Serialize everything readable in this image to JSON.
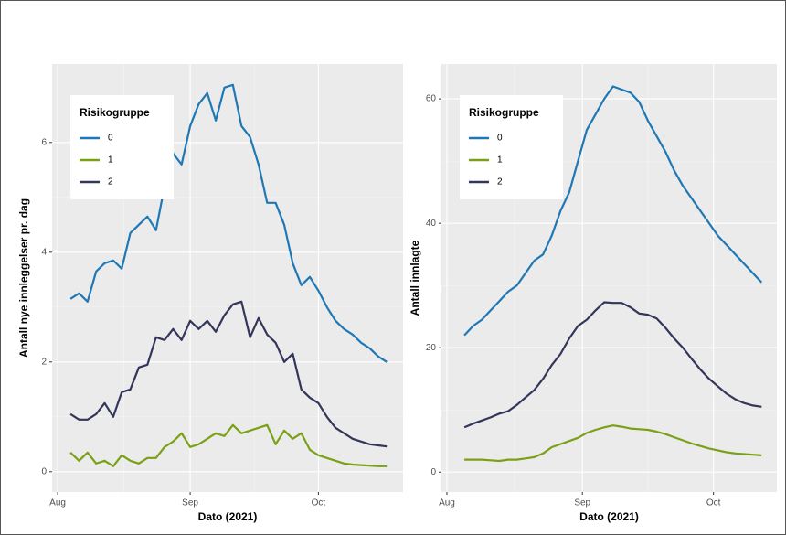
{
  "chart_data": [
    {
      "type": "line",
      "xlabel": "Dato (2021)",
      "ylabel": "Antall nye innleggelser pr. dag",
      "legend_title": "Risikogruppe",
      "legend": "top-left",
      "grid": true,
      "xlim": [
        -1.3,
        80.8
      ],
      "ylim": [
        -0.37,
        7.43
      ],
      "xticks": [
        {
          "value": 0,
          "label": "Aug"
        },
        {
          "value": 31,
          "label": "Sep"
        },
        {
          "value": 61,
          "label": "Oct"
        }
      ],
      "yticks": [
        0,
        2,
        4,
        6
      ],
      "x": [
        3,
        5,
        7,
        9,
        11,
        13,
        15,
        17,
        19,
        21,
        23,
        25,
        27,
        29,
        31,
        33,
        35,
        37,
        39,
        41,
        43,
        45,
        47,
        49,
        51,
        53,
        55,
        57,
        59,
        61,
        63,
        65,
        67,
        69,
        71,
        73,
        75,
        77
      ],
      "series": [
        {
          "name": "0",
          "color": "#1f78b4",
          "values": [
            3.15,
            3.25,
            3.1,
            3.65,
            3.8,
            3.85,
            3.7,
            4.35,
            4.5,
            4.65,
            4.4,
            5.2,
            5.8,
            5.6,
            6.3,
            6.7,
            6.9,
            6.4,
            7.0,
            7.05,
            6.3,
            6.1,
            5.6,
            4.9,
            4.9,
            4.5,
            3.8,
            3.4,
            3.55,
            3.3,
            3.0,
            2.75,
            2.6,
            2.5,
            2.35,
            2.25,
            2.1,
            2.0
          ]
        },
        {
          "name": "1",
          "color": "#7aa116",
          "values": [
            0.35,
            0.2,
            0.35,
            0.15,
            0.2,
            0.1,
            0.3,
            0.2,
            0.15,
            0.25,
            0.25,
            0.45,
            0.55,
            0.7,
            0.45,
            0.5,
            0.6,
            0.7,
            0.65,
            0.85,
            0.7,
            0.75,
            0.8,
            0.85,
            0.5,
            0.75,
            0.6,
            0.7,
            0.4,
            0.3,
            0.25,
            0.2,
            0.15,
            0.13,
            0.12,
            0.11,
            0.1,
            0.1
          ]
        },
        {
          "name": "2",
          "color": "#33355a",
          "values": [
            1.05,
            0.95,
            0.95,
            1.05,
            1.25,
            1.0,
            1.45,
            1.5,
            1.9,
            1.95,
            2.45,
            2.4,
            2.6,
            2.4,
            2.75,
            2.6,
            2.75,
            2.55,
            2.85,
            3.05,
            3.1,
            2.45,
            2.8,
            2.5,
            2.35,
            2.0,
            2.15,
            1.5,
            1.35,
            1.25,
            1.0,
            0.8,
            0.7,
            0.6,
            0.55,
            0.5,
            0.48,
            0.46
          ]
        }
      ]
    },
    {
      "type": "line",
      "xlabel": "Dato (2021)",
      "ylabel": "Antall innlagte",
      "legend_title": "Risikogruppe",
      "legend": "top-left",
      "grid": true,
      "xlim": [
        -1.25,
        75.5
      ],
      "ylim": [
        -3.2,
        65.6
      ],
      "xticks": [
        {
          "value": 0,
          "label": "Aug"
        },
        {
          "value": 31,
          "label": "Sep"
        },
        {
          "value": 61,
          "label": "Oct"
        }
      ],
      "yticks": [
        0,
        20,
        40,
        60
      ],
      "x": [
        4,
        6,
        8,
        10,
        12,
        14,
        16,
        18,
        20,
        22,
        24,
        26,
        28,
        30,
        32,
        34,
        36,
        38,
        40,
        42,
        44,
        46,
        48,
        50,
        52,
        54,
        56,
        58,
        60,
        62,
        64,
        66,
        68,
        70,
        72
      ],
      "series": [
        {
          "name": "0",
          "color": "#1f78b4",
          "values": [
            22,
            23.5,
            24.5,
            26,
            27.5,
            29,
            30,
            32,
            34,
            35,
            38,
            42,
            45,
            50,
            55,
            57.5,
            60,
            62,
            61.5,
            61,
            59.5,
            56.5,
            54,
            51.5,
            48.5,
            46,
            44,
            42,
            40,
            38,
            36.5,
            35,
            33.5,
            32,
            30.5
          ]
        },
        {
          "name": "1",
          "color": "#7aa116",
          "values": [
            2,
            2,
            2,
            1.9,
            1.8,
            2,
            2,
            2.2,
            2.4,
            3,
            4,
            4.5,
            5,
            5.5,
            6.3,
            6.8,
            7.2,
            7.5,
            7.3,
            7,
            6.9,
            6.8,
            6.5,
            6.1,
            5.6,
            5.1,
            4.6,
            4.2,
            3.8,
            3.5,
            3.2,
            3.0,
            2.9,
            2.8,
            2.7
          ]
        },
        {
          "name": "2",
          "color": "#33355a",
          "values": [
            7.2,
            7.8,
            8.3,
            8.8,
            9.4,
            9.8,
            10.8,
            12,
            13.2,
            15,
            17.2,
            19,
            21.5,
            23.5,
            24.5,
            26,
            27.3,
            27.2,
            27.2,
            26.5,
            25.5,
            25.3,
            24.7,
            23.2,
            21.5,
            20,
            18.2,
            16.5,
            15,
            13.8,
            12.6,
            11.7,
            11.1,
            10.7,
            10.5
          ]
        }
      ]
    }
  ]
}
